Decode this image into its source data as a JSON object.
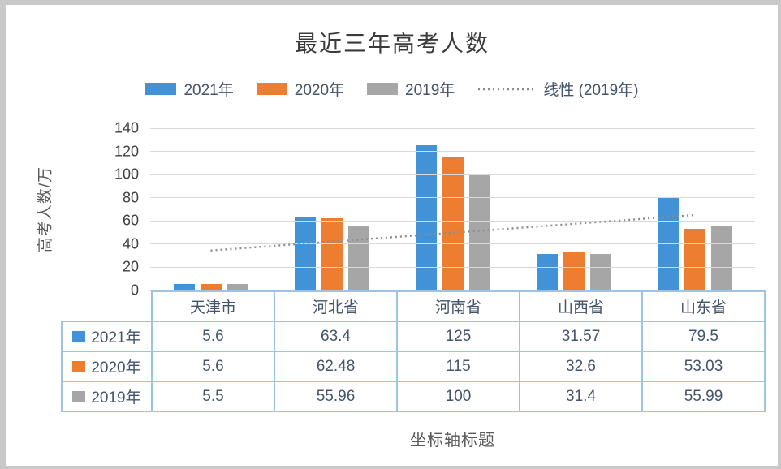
{
  "window": {
    "background": "#c9c9c9",
    "chart_background": "#ffffff"
  },
  "chart_data": {
    "type": "bar",
    "title": "最近三年高考人数",
    "ylabel": "高考人数/万",
    "xlabel": "坐标轴标题",
    "categories": [
      "天津市",
      "河北省",
      "河南省",
      "山西省",
      "山东省"
    ],
    "series": [
      {
        "name": "2021年",
        "color": "#4292d8",
        "values": [
          5.6,
          63.4,
          125,
          31.57,
          79.5
        ]
      },
      {
        "name": "2020年",
        "color": "#ed7d31",
        "values": [
          5.6,
          62.48,
          115,
          32.6,
          53.03
        ]
      },
      {
        "name": "2019年",
        "color": "#a6a6a6",
        "values": [
          5.5,
          55.96,
          100,
          31.4,
          55.99
        ]
      }
    ],
    "trendline": {
      "label": "线性 (2019年)",
      "series": "2019年",
      "style": "dotted",
      "color": "#8c8c8c",
      "start_value": 34.5,
      "end_value": 65.1
    },
    "ylim": [
      0,
      140
    ],
    "yticks": [
      0,
      20,
      40,
      60,
      80,
      100,
      120,
      140
    ],
    "grid": true,
    "legend_position": "top",
    "data_table_shown": true
  },
  "colors": {
    "grid": "#d9d9d9",
    "table_border": "#9dc3e6",
    "text": "#44546a",
    "tick_text": "#404040",
    "axis_title_text": "#595959",
    "title_text": "#3a3a3a"
  }
}
